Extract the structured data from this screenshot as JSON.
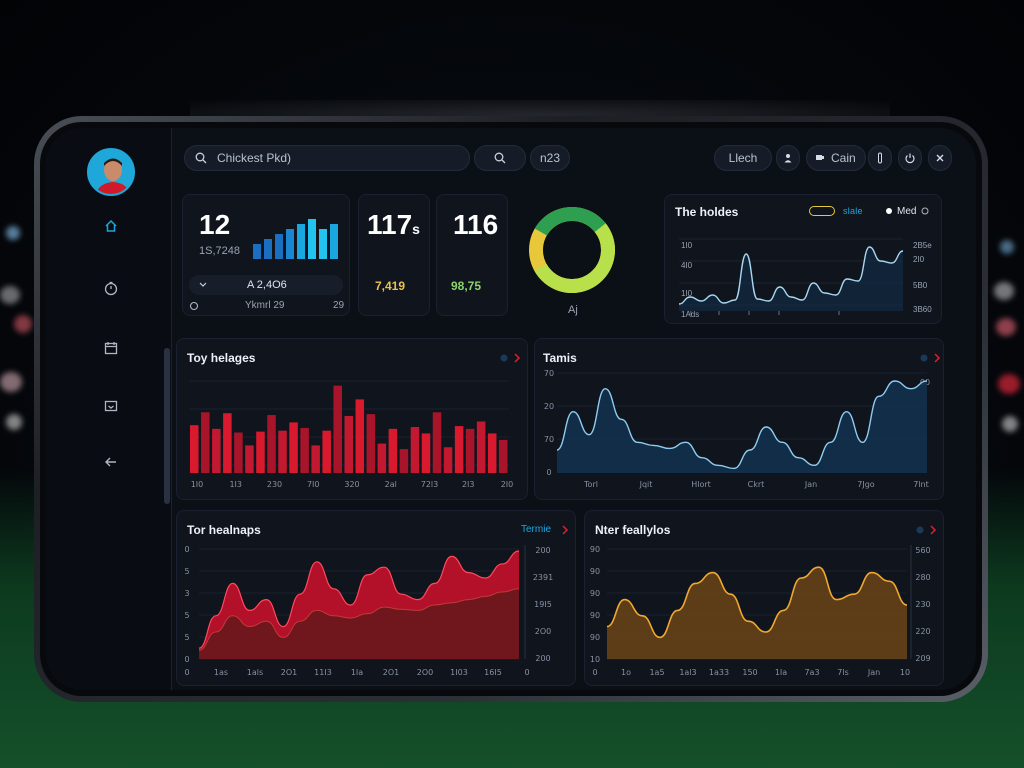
{
  "search": {
    "value": "Chickest Pkd)"
  },
  "topbar": {
    "search_chip": "",
    "code_chip": "n23",
    "user_chip": "Llech",
    "action_chip": "Cain"
  },
  "kpi": {
    "main": {
      "value": "12",
      "sub": "1S,7248",
      "badge": "A 2,4O6",
      "foot_left": "Ykmrl 29",
      "foot_right": "29"
    },
    "second": {
      "value": "117",
      "suffix": "s",
      "sub": "7,419"
    },
    "third": {
      "value": "116",
      "sub": "98,75"
    },
    "donut_label": "Aj"
  },
  "panels": {
    "top_right": {
      "title": "The holdes",
      "chip_label": "sIaIe",
      "toggle_label": "Med",
      "y_left": [
        "1I0",
        "4I0",
        "1I0",
        "1Ads"
      ],
      "y_right": [
        "2B5e",
        "2I0",
        "5B0",
        "3B60"
      ]
    },
    "bar_panel": {
      "title": "Toy helages",
      "x_labels": [
        "1I0",
        "1I3",
        "230",
        "7I0",
        "320",
        "2al",
        "72l3",
        "2I3",
        "2I0"
      ]
    },
    "area_panel": {
      "title": "Tamis",
      "y_labels": [
        "70",
        "20",
        "70",
        "0"
      ],
      "y_right": "00",
      "x_labels": [
        "Torl",
        "Jqit",
        "Hlort",
        "Ckrt",
        "Jan",
        "7Jgo",
        "7lnt"
      ]
    },
    "red_panel": {
      "title": "Tor healnaps",
      "link": "Termie",
      "y_left": [
        "0",
        "5",
        "3",
        "5",
        "5",
        "0"
      ],
      "y_right": [
        "200",
        "2391",
        "19I5",
        "2O0",
        "200"
      ],
      "x_labels": [
        "0",
        "1as",
        "1als",
        "2O1",
        "11I3",
        "1Ia",
        "2O1",
        "2O0",
        "1I03",
        "16I5",
        "0"
      ]
    },
    "amber_panel": {
      "title": "Nter feallylos",
      "y_left": [
        "90",
        "90",
        "90",
        "90",
        "90",
        "10"
      ],
      "y_right": [
        "560",
        "280",
        "230",
        "220",
        "209"
      ],
      "x_labels": [
        "0",
        "1o",
        "1a5",
        "1al3",
        "1a33",
        "150",
        "1Ia",
        "7a3",
        "7ls",
        "Jan",
        "10"
      ]
    }
  },
  "chart_data": [
    {
      "type": "bar",
      "title": "",
      "values": [
        3,
        4,
        5,
        6,
        7,
        8,
        6,
        7
      ]
    },
    {
      "type": "line",
      "title": "The holdes",
      "values": [
        5,
        12,
        8,
        14,
        6,
        9,
        55,
        10,
        8,
        22,
        12,
        9,
        26,
        16,
        14,
        30,
        28,
        62,
        48,
        46,
        58
      ]
    },
    {
      "type": "bar",
      "title": "Toy helages",
      "values": [
        52,
        66,
        48,
        65,
        44,
        30,
        45,
        63,
        46,
        55,
        49,
        30,
        46,
        95,
        62,
        80,
        64,
        32,
        48,
        26,
        50,
        43,
        66,
        28,
        51,
        48,
        56,
        43,
        36
      ]
    },
    {
      "type": "area",
      "title": "Tamis",
      "values": [
        15,
        40,
        25,
        55,
        35,
        20,
        18,
        16,
        20,
        10,
        5,
        3,
        15,
        30,
        20,
        10,
        5,
        20,
        40,
        20,
        50,
        60,
        55,
        60
      ]
    },
    {
      "type": "area",
      "title": "Tor healnaps",
      "series": [
        {
          "values": [
            10,
            40,
            70,
            45,
            55,
            30,
            60,
            90,
            65,
            50,
            78,
            85,
            60,
            55,
            70,
            95,
            80,
            75,
            88,
            100
          ]
        },
        {
          "values": [
            8,
            25,
            40,
            30,
            35,
            20,
            35,
            45,
            40,
            38,
            42,
            48,
            46,
            45,
            50,
            52,
            55,
            58,
            62,
            65
          ]
        }
      ]
    },
    {
      "type": "area",
      "title": "Nter feallylos",
      "values": [
        30,
        55,
        40,
        20,
        45,
        70,
        80,
        60,
        35,
        25,
        45,
        75,
        85,
        55,
        60,
        80,
        72,
        50
      ]
    }
  ],
  "colors": {
    "accent_blue": "#1aa7e0",
    "accent_red": "#d2122e",
    "accent_amber": "#e8a030",
    "panel_bg": "#0f141d"
  },
  "icons": [
    "search-icon",
    "home-icon",
    "stopwatch-icon",
    "calendar-icon",
    "inbox-icon",
    "back-arrow-icon",
    "user-icon",
    "flag-icon",
    "info-icon",
    "power-icon",
    "close-icon"
  ]
}
